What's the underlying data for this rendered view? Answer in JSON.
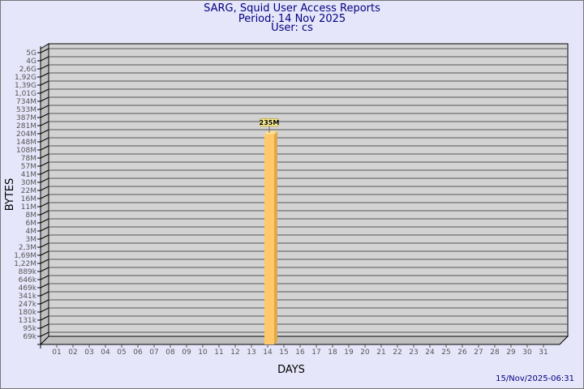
{
  "title": "SARG, Squid User Access Reports",
  "period": "Period: 14 Nov 2025",
  "user": "User: cs",
  "footer": "15/Nov/2025-06:31",
  "colors": {
    "background": "#e6e6fa",
    "plot": "#d3d3d3",
    "bar": "#ffc868",
    "bar_side": "#e0a848",
    "title": "#000080"
  },
  "chart_data": {
    "type": "bar",
    "xlabel": "DAYS",
    "ylabel": "BYTES",
    "y_scale": "log",
    "grid": true,
    "categories": [
      "01",
      "02",
      "03",
      "04",
      "05",
      "06",
      "07",
      "08",
      "09",
      "10",
      "11",
      "12",
      "13",
      "14",
      "15",
      "16",
      "17",
      "18",
      "19",
      "20",
      "21",
      "22",
      "23",
      "24",
      "25",
      "26",
      "27",
      "28",
      "29",
      "30",
      "31"
    ],
    "y_ticks": [
      "69k",
      "95k",
      "131k",
      "180k",
      "247k",
      "341k",
      "469k",
      "646k",
      "889k",
      "1,22M",
      "1,69M",
      "2,3M",
      "3M",
      "4M",
      "6M",
      "8M",
      "11M",
      "16M",
      "22M",
      "30M",
      "41M",
      "57M",
      "78M",
      "108M",
      "148M",
      "204M",
      "281M",
      "387M",
      "533M",
      "734M",
      "1,01G",
      "1,39G",
      "1,92G",
      "2,6G",
      "4G",
      "5G"
    ],
    "bars": [
      {
        "day": "14",
        "value": 235000000,
        "label": "235M"
      }
    ]
  }
}
